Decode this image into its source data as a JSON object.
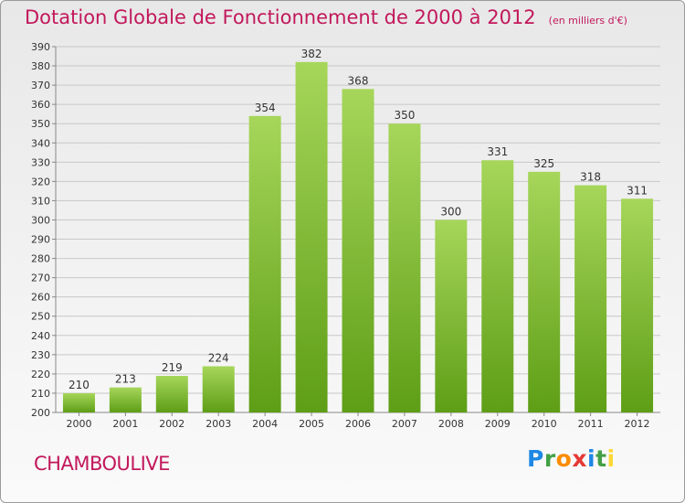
{
  "header": {
    "title": "Dotation Globale de Fonctionnement de 2000 à 2012",
    "unit": "(en milliers d'€)"
  },
  "commune": "CHAMBOULIVE",
  "logo": {
    "text": "Proxiti"
  },
  "colors": {
    "title": "#c2185b",
    "bar_top": "#a6d65a",
    "bar_bottom": "#5e9e16",
    "grid": "#c8c8c8",
    "axis_text": "#333333"
  },
  "chart_data": {
    "type": "bar",
    "title": "Dotation Globale de Fonctionnement de 2000 à 2012",
    "subtitle": "(en milliers d'€)",
    "categories": [
      "2000",
      "2001",
      "2002",
      "2003",
      "2004",
      "2005",
      "2006",
      "2007",
      "2008",
      "2009",
      "2010",
      "2011",
      "2012"
    ],
    "values": [
      210,
      213,
      219,
      224,
      354,
      382,
      368,
      350,
      300,
      331,
      325,
      318,
      311
    ],
    "ylim": [
      200,
      390
    ],
    "ytick_step": 10,
    "grid": true,
    "legend": "none",
    "data_labels": true
  }
}
